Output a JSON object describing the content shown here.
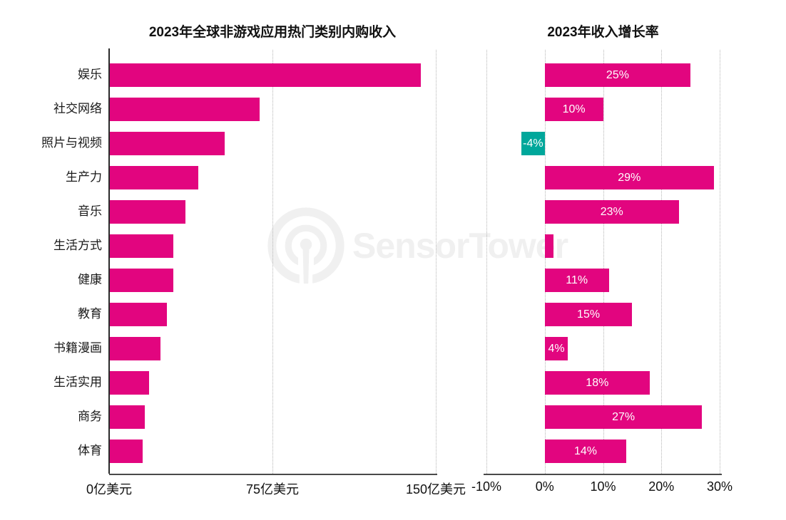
{
  "watermark": {
    "text": "SensorTower",
    "icon": "sensor-tower-antenna-logo",
    "color": "#f0f0f0"
  },
  "colors": {
    "bar_positive": "#E2057F",
    "bar_negative": "#00A79B",
    "bar_value_label": "#ffffff",
    "axis_line": "#2b2b2b",
    "gridline": "#b5b5b5",
    "text": "#1a1a1a"
  },
  "chart_data": [
    {
      "type": "bar",
      "orientation": "horizontal",
      "title": "2023年全球非游戏应用热门类别内购收入",
      "categories": [
        "娱乐",
        "社交网络",
        "照片与视频",
        "生产力",
        "音乐",
        "生活方式",
        "健康",
        "教育",
        "书籍漫画",
        "生活实用",
        "商务",
        "体育"
      ],
      "values": [
        143,
        69,
        53,
        41,
        35,
        29.5,
        29.5,
        26.5,
        23.5,
        18.5,
        16.5,
        15.5
      ],
      "unit": "亿美元",
      "xlim": [
        0,
        150
      ],
      "xticks": [
        {
          "value": 0,
          "label": "0亿美元"
        },
        {
          "value": 75,
          "label": "75亿美元"
        },
        {
          "value": 150,
          "label": "150亿美元"
        }
      ],
      "grid": "dotted-vertical",
      "legend": "none",
      "bar_value_labels": [
        "",
        "",
        "",
        "",
        "",
        "",
        "",
        "",
        "",
        "",
        "",
        ""
      ]
    },
    {
      "type": "bar",
      "orientation": "horizontal",
      "title": "2023年收入增长率",
      "categories": [
        "娱乐",
        "社交网络",
        "照片与视频",
        "生产力",
        "音乐",
        "生活方式",
        "健康",
        "教育",
        "书籍漫画",
        "生活实用",
        "商务",
        "体育"
      ],
      "values": [
        25,
        10,
        -4,
        29,
        23,
        1.5,
        11,
        15,
        4,
        18,
        27,
        14
      ],
      "unit": "%",
      "xlim": [
        -10,
        30
      ],
      "xticks": [
        {
          "value": -10,
          "label": "-10%"
        },
        {
          "value": 0,
          "label": "0%"
        },
        {
          "value": 10,
          "label": "10%"
        },
        {
          "value": 20,
          "label": "20%"
        },
        {
          "value": 30,
          "label": "30%"
        }
      ],
      "grid": "dotted-vertical",
      "legend": "none",
      "bar_value_labels": [
        "25%",
        "10%",
        "-4%",
        "29%",
        "23%",
        "",
        "11%",
        "15%",
        "4%",
        "18%",
        "27%",
        "14%"
      ]
    }
  ]
}
